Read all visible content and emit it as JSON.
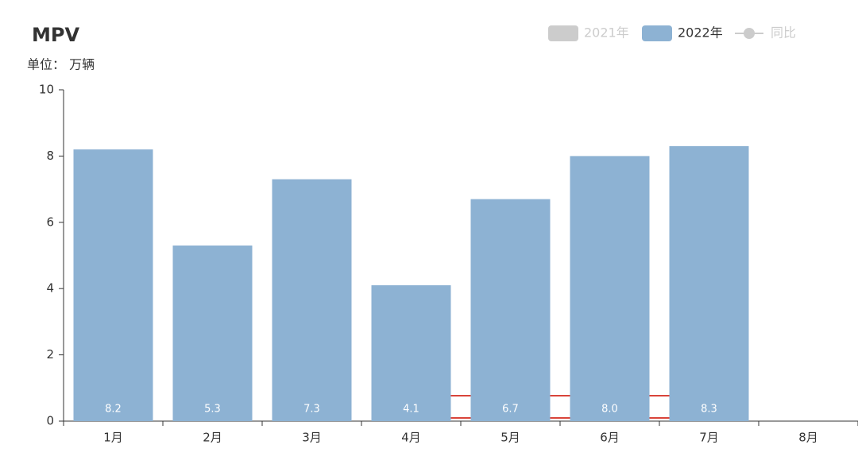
{
  "chart_data": {
    "type": "bar",
    "title": "MPV",
    "subtitle": "单位： 万辆",
    "categories": [
      "1月",
      "2月",
      "3月",
      "4月",
      "5月",
      "6月",
      "7月",
      "8月"
    ],
    "series": [
      {
        "name": "2021年",
        "color": "#cccccc",
        "hidden": true,
        "values": [
          null,
          null,
          null,
          null,
          null,
          null,
          null,
          null
        ]
      },
      {
        "name": "2022年",
        "color": "#8db2d3",
        "values": [
          8.2,
          5.3,
          7.3,
          4.1,
          6.7,
          8.0,
          8.3,
          null
        ],
        "value_labels": [
          "8.2",
          "5.3",
          "7.3",
          "4.1",
          "6.7",
          "8.0",
          "8.3",
          null
        ]
      },
      {
        "name": "同比",
        "type": "line",
        "color": "#cccccc",
        "hidden": true,
        "values": [
          null,
          null,
          null,
          null,
          null,
          null,
          null,
          null
        ]
      }
    ],
    "ylim": [
      0,
      10
    ],
    "yticks": [
      0,
      2,
      4,
      6,
      8,
      10
    ],
    "grid": false
  }
}
